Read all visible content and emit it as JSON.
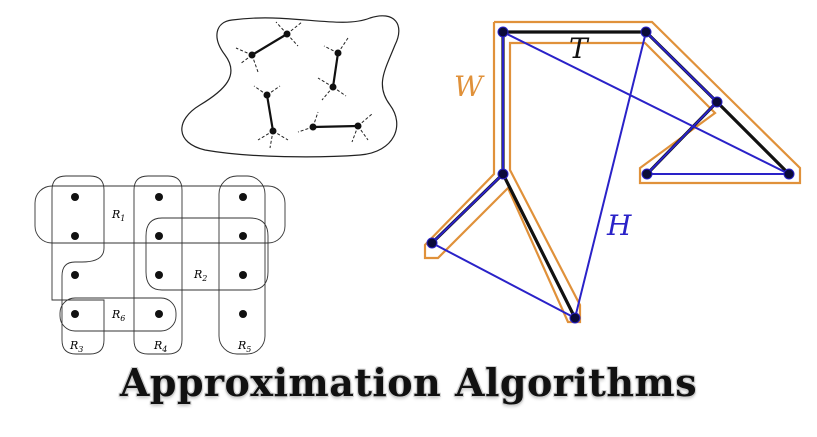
{
  "title": "Approximation Algorithms",
  "set_cover": {
    "sets": [
      {
        "base": "R",
        "sub": "1"
      },
      {
        "base": "R",
        "sub": "2"
      },
      {
        "base": "R",
        "sub": "3"
      },
      {
        "base": "R",
        "sub": "4"
      },
      {
        "base": "R",
        "sub": "5"
      },
      {
        "base": "R",
        "sub": "6"
      }
    ]
  },
  "tsp": {
    "labels": {
      "W": "W",
      "T": "T",
      "H": "H"
    },
    "colors": {
      "walk": "#e0913a",
      "tree": "#000000",
      "hamiltonian": "#2a22c8"
    }
  }
}
